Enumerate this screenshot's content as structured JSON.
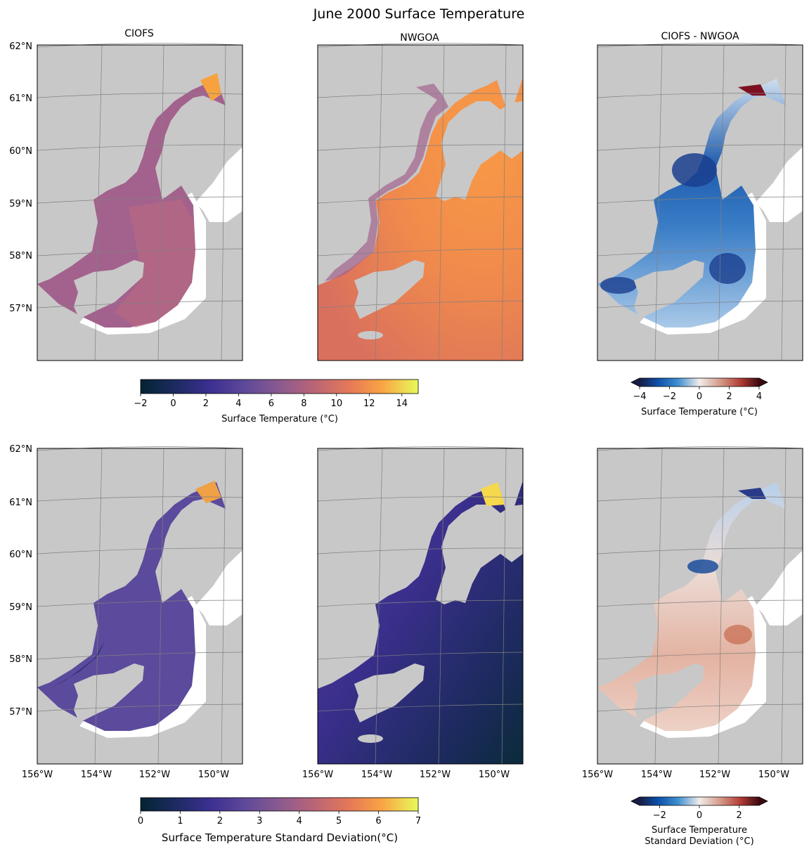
{
  "figure": {
    "suptitle": "June 2000 Surface Temperature",
    "panels": [
      {
        "title": "CIOFS"
      },
      {
        "title": "NWGOA"
      },
      {
        "title": "CIOFS - NWGOA"
      },
      {
        "title": ""
      },
      {
        "title": ""
      },
      {
        "title": ""
      }
    ],
    "lat_ticks": [
      "62°N",
      "61°N",
      "60°N",
      "59°N",
      "58°N",
      "57°N"
    ],
    "lon_ticks": [
      "156°W",
      "154°W",
      "152°W",
      "150°W"
    ],
    "colorbars": {
      "temp": {
        "label": "Surface Temperature (°C)",
        "ticks": [
          "−2",
          "0",
          "2",
          "4",
          "6",
          "8",
          "10",
          "12",
          "14"
        ],
        "range": [
          -2,
          15
        ],
        "cmap": "thermal"
      },
      "temp_diff": {
        "label": "Surface Temperature (°C)",
        "ticks": [
          "−4",
          "−2",
          "0",
          "2",
          "4"
        ],
        "range": [
          -4,
          4
        ],
        "cmap": "balance",
        "extend": "both"
      },
      "std": {
        "label": "Surface Temperature Standard Deviation(°C)",
        "ticks": [
          "0",
          "1",
          "2",
          "3",
          "4",
          "5",
          "6",
          "7"
        ],
        "range": [
          0,
          7
        ],
        "cmap": "thermal"
      },
      "std_diff": {
        "label_line1": "Surface Temperature",
        "label_line2": "Standard Deviation (°C)",
        "ticks": [
          "−2",
          "0",
          "2"
        ],
        "range": [
          -3,
          3
        ],
        "cmap": "balance",
        "extend": "both"
      }
    },
    "colors": {
      "land": "#c8c8c8",
      "ocean": "#ffffff",
      "grid": "#808080",
      "frame": "#000000"
    }
  },
  "chart_data": {
    "type": "heatmap",
    "title": "June 2000 Surface Temperature",
    "map_extent": {
      "lon": [
        -156,
        -149
      ],
      "lat": [
        56,
        62
      ]
    },
    "panels": [
      {
        "row": 1,
        "col": 1,
        "title": "CIOFS",
        "field": "surface temperature",
        "range": [
          -2,
          15
        ],
        "typical_value": 7.5
      },
      {
        "row": 1,
        "col": 2,
        "title": "NWGOA",
        "field": "surface temperature",
        "range": [
          -2,
          15
        ],
        "typical_value": 9.5
      },
      {
        "row": 1,
        "col": 3,
        "title": "CIOFS - NWGOA",
        "field": "surface temperature difference",
        "range": [
          -4,
          4
        ],
        "typical_value": -2
      },
      {
        "row": 2,
        "col": 1,
        "field": "surface temperature standard deviation",
        "range": [
          0,
          7
        ],
        "typical_value": 2
      },
      {
        "row": 2,
        "col": 2,
        "field": "surface temperature standard deviation",
        "range": [
          0,
          7
        ],
        "typical_value": 1.2
      },
      {
        "row": 2,
        "col": 3,
        "field": "surface temperature standard deviation difference",
        "range": [
          -3,
          3
        ],
        "typical_value": 0.8
      }
    ]
  }
}
